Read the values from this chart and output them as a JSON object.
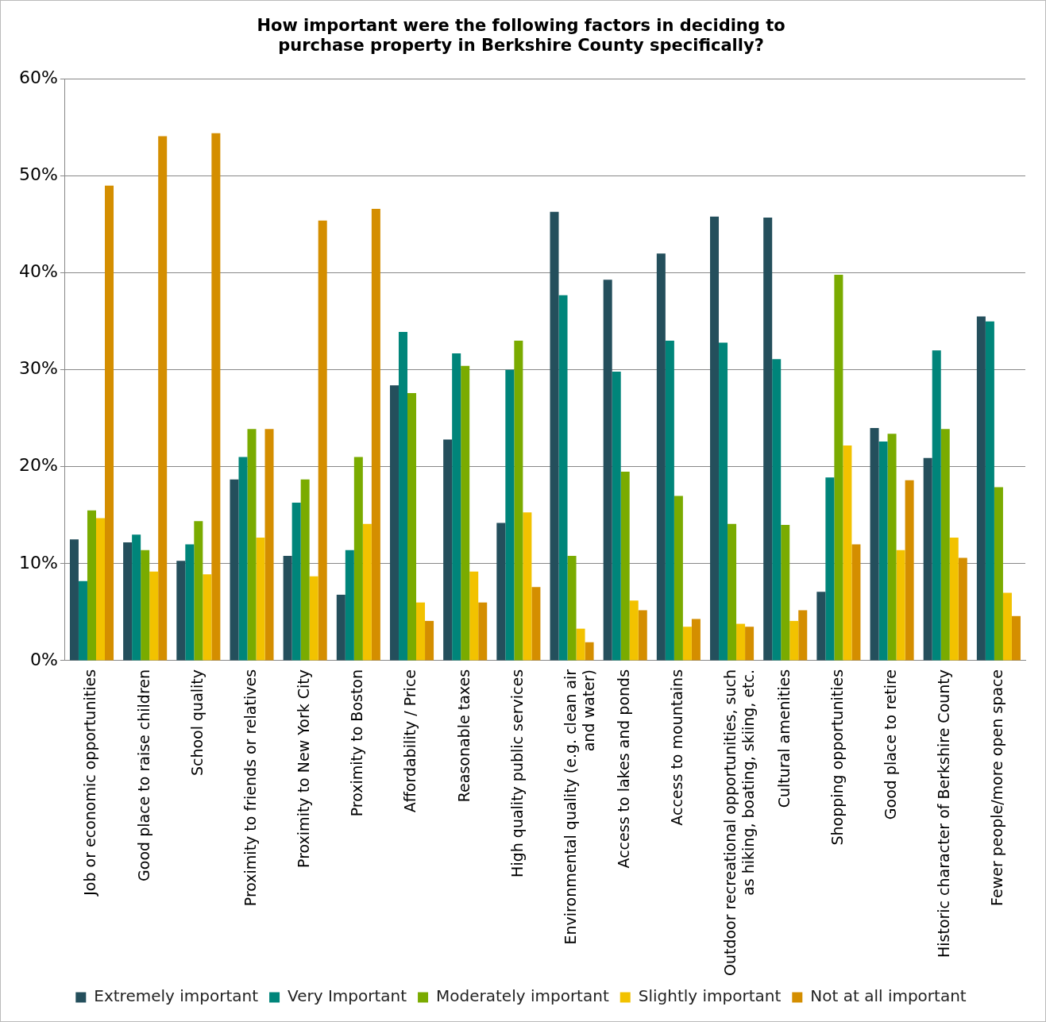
{
  "chart_data": {
    "type": "bar",
    "title": "How important were the following factors in deciding to purchase property in Berkshire County specifically?",
    "categories": [
      "Job or economic opportunities",
      "Good place to raise children",
      "School quality",
      "Proximity to friends or relatives",
      "Proximity to New York City",
      "Proximity to Boston",
      "Affordability / Price",
      "Reasonable taxes",
      "High quality public services",
      "Environmental quality (e.g. clean air and water)",
      "Access to lakes and ponds",
      "Access to mountains",
      "Outdoor recreational opportunities, such as hiking, boating, skiing, etc.",
      "Cultural amenities",
      "Shopping opportunities",
      "Good place to retire",
      "Historic character of Berkshire County",
      "Fewer people/more open space"
    ],
    "series": [
      {
        "name": "Extremely important",
        "color": "#244f5c",
        "values": [
          12.5,
          12.2,
          10.3,
          18.7,
          10.8,
          6.8,
          28.4,
          22.8,
          14.2,
          46.3,
          39.3,
          42,
          45.8,
          45.7,
          7.1,
          24,
          20.9,
          35.5
        ]
      },
      {
        "name": "Very Important",
        "color": "#00857a",
        "values": [
          8.2,
          13,
          12,
          21,
          16.3,
          11.4,
          33.9,
          31.7,
          30,
          37.7,
          29.8,
          33,
          32.8,
          31.1,
          18.9,
          22.6,
          32,
          35
        ]
      },
      {
        "name": "Moderately important",
        "color": "#7aab00",
        "values": [
          15.5,
          11.4,
          14.4,
          23.9,
          18.7,
          21,
          27.6,
          30.4,
          33,
          10.8,
          19.5,
          17,
          14.1,
          14,
          39.8,
          23.4,
          23.9,
          17.9
        ]
      },
      {
        "name": "Slightly important",
        "color": "#f2c200",
        "values": [
          14.7,
          9.2,
          8.9,
          12.7,
          8.7,
          14.1,
          6,
          9.2,
          15.3,
          3.3,
          6.2,
          3.5,
          3.8,
          4.1,
          22.2,
          11.4,
          12.7,
          7
        ]
      },
      {
        "name": "Not at all important",
        "color": "#d48e00",
        "values": [
          49,
          54.1,
          54.4,
          23.9,
          45.4,
          46.6,
          4.1,
          6,
          7.6,
          1.9,
          5.2,
          4.3,
          3.5,
          5.2,
          12,
          18.6,
          10.6,
          4.6
        ]
      }
    ],
    "ylim": [
      0,
      60
    ],
    "yticks": [
      {
        "value": 0,
        "label": "0%"
      },
      {
        "value": 10,
        "label": "10%"
      },
      {
        "value": 20,
        "label": "20%"
      },
      {
        "value": 30,
        "label": "30%"
      },
      {
        "value": 40,
        "label": "40%"
      },
      {
        "value": 50,
        "label": "50%"
      },
      {
        "value": 60,
        "label": "60%"
      }
    ],
    "grid": "y",
    "legend": "bottom"
  }
}
